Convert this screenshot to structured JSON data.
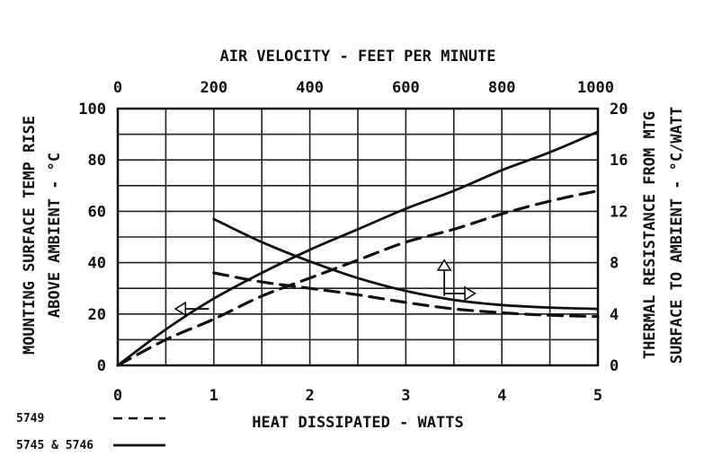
{
  "chart_data": {
    "type": "line",
    "title": "AIR VELOCITY - FEET PER MINUTE",
    "xlabel": "HEAT DISSIPATED - WATTS",
    "ylabel_left_line1": "MOUNTING SURFACE TEMP RISE",
    "ylabel_left_line2": "ABOVE AMBIENT - °C",
    "ylabel_right_line1": "THERMAL RESISTANCE FROM MTG",
    "ylabel_right_line2": "SURFACE TO AMBIENT - °C/WATT",
    "x_range": [
      0,
      5
    ],
    "x_ticks": [
      "0",
      "1",
      "2",
      "3",
      "4",
      "5"
    ],
    "x_top_range": [
      0,
      1000
    ],
    "x_top_ticks": [
      "0",
      "200",
      "400",
      "600",
      "800",
      "1000"
    ],
    "y_left_range": [
      0,
      100
    ],
    "y_left_ticks": [
      "0",
      "20",
      "40",
      "60",
      "80",
      "100"
    ],
    "y_right_range": [
      0,
      20
    ],
    "y_right_ticks": [
      "0",
      "4",
      "8",
      "12",
      "16",
      "20"
    ],
    "grid": true,
    "legend": [
      {
        "label": "5749",
        "style": "dashed"
      },
      {
        "label": "5745 & 5746",
        "style": "solid"
      }
    ],
    "series": [
      {
        "name": "5745 & 5746 temp rise vs heat dissipated",
        "style": "solid",
        "x_axis": "bottom",
        "y_axis": "left",
        "x": [
          0,
          0.5,
          1,
          1.5,
          2,
          2.5,
          3,
          3.5,
          4,
          4.5,
          5
        ],
        "y": [
          0,
          14,
          26,
          36,
          45,
          53,
          61,
          68,
          76,
          83,
          91
        ]
      },
      {
        "name": "5749 temp rise vs heat dissipated",
        "style": "dashed",
        "x_axis": "bottom",
        "y_axis": "left",
        "x": [
          0,
          0.5,
          1,
          1.5,
          2,
          2.5,
          3,
          3.5,
          4,
          4.5,
          5
        ],
        "y": [
          0,
          10,
          18,
          27,
          34,
          41,
          48,
          53,
          59,
          64,
          68
        ]
      },
      {
        "name": "5745 & 5746 thermal resistance vs air velocity",
        "style": "solid",
        "x_axis": "top",
        "y_axis": "right",
        "x": [
          200,
          300,
          400,
          500,
          600,
          700,
          800,
          900,
          1000
        ],
        "y": [
          11.4,
          9.6,
          8.1,
          6.8,
          5.8,
          5.1,
          4.7,
          4.5,
          4.4
        ]
      },
      {
        "name": "5749 thermal resistance vs air velocity",
        "style": "dashed",
        "x_axis": "top",
        "y_axis": "right",
        "x": [
          200,
          300,
          400,
          500,
          600,
          700,
          800,
          900,
          1000
        ],
        "y": [
          7.2,
          6.5,
          6.0,
          5.5,
          4.9,
          4.4,
          4.1,
          3.9,
          3.8
        ]
      }
    ]
  }
}
